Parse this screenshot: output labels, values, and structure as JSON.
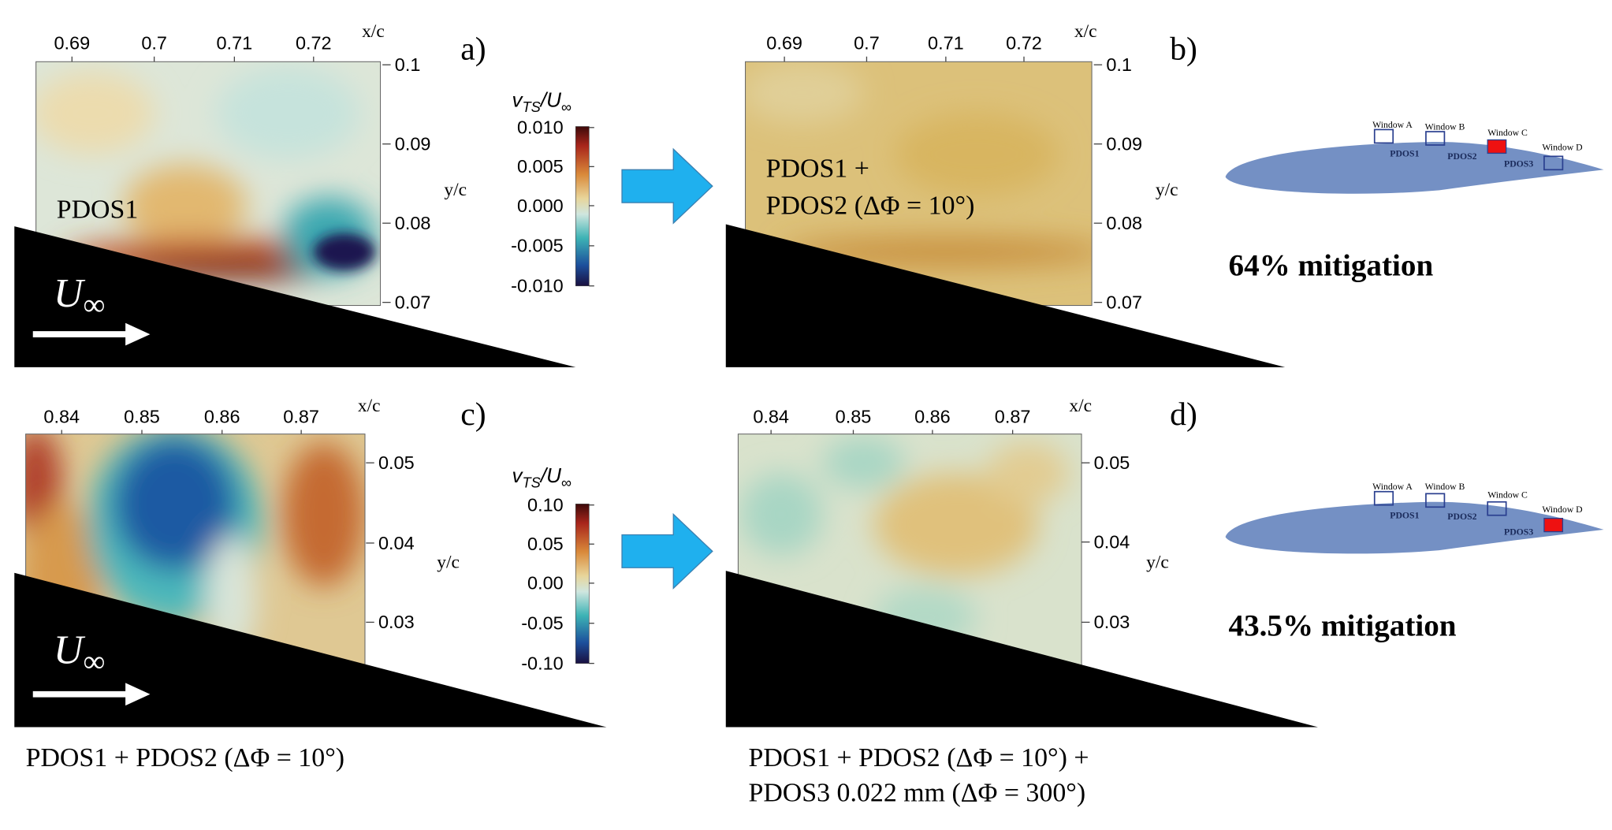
{
  "panels": [
    {
      "label": "a)",
      "x_axis_label": "x/c",
      "y_axis_label": "y/c",
      "xticks": [
        "0.69",
        "0.7",
        "0.71",
        "0.72"
      ],
      "yticks": [
        "0.1",
        "0.09",
        "0.08",
        "0.07"
      ],
      "text": [
        "PDOS1"
      ],
      "flow_label": "U",
      "flow_sub": "∞"
    },
    {
      "label": "b)",
      "x_axis_label": "x/c",
      "y_axis_label": "y/c",
      "xticks": [
        "0.69",
        "0.7",
        "0.71",
        "0.72"
      ],
      "yticks": [
        "0.1",
        "0.09",
        "0.08",
        "0.07"
      ],
      "text": [
        "PDOS1 +",
        "PDOS2 (ΔΦ = 10°)"
      ]
    },
    {
      "label": "c)",
      "x_axis_label": "x/c",
      "y_axis_label": "y/c",
      "xticks": [
        "0.84",
        "0.85",
        "0.86",
        "0.87"
      ],
      "yticks": [
        "0.05",
        "0.04",
        "0.03"
      ],
      "text": [],
      "flow_label": "U",
      "flow_sub": "∞"
    },
    {
      "label": "d)",
      "x_axis_label": "x/c",
      "y_axis_label": "y/c",
      "xticks": [
        "0.84",
        "0.85",
        "0.86",
        "0.87"
      ],
      "yticks": [
        "0.05",
        "0.04",
        "0.03"
      ],
      "text": []
    }
  ],
  "colorbars": [
    {
      "title": "v",
      "title_sub": "TS",
      "title_rest": "/U",
      "title_sub2": "∞",
      "ticks": [
        "0.010",
        "0.005",
        "0.000",
        "-0.005",
        "-0.010"
      ]
    },
    {
      "title": "v",
      "title_sub": "TS",
      "title_rest": "/U",
      "title_sub2": "∞",
      "ticks": [
        "0.10",
        "0.05",
        "0.00",
        "-0.05",
        "-0.10"
      ]
    }
  ],
  "captions": [
    "PDOS1 + PDOS2 (ΔΦ = 10°)",
    "PDOS1 + PDOS2 (ΔΦ = 10°) +",
    "PDOS3 0.022 mm (ΔΦ = 300°)"
  ],
  "mitigation": [
    "64% mitigation",
    "43.5% mitigation"
  ],
  "diagram_labels": {
    "windows": [
      "Window A",
      "Window B",
      "Window C",
      "Window D"
    ],
    "devices": [
      "PDOS1",
      "PDOS2",
      "PDOS3"
    ]
  }
}
